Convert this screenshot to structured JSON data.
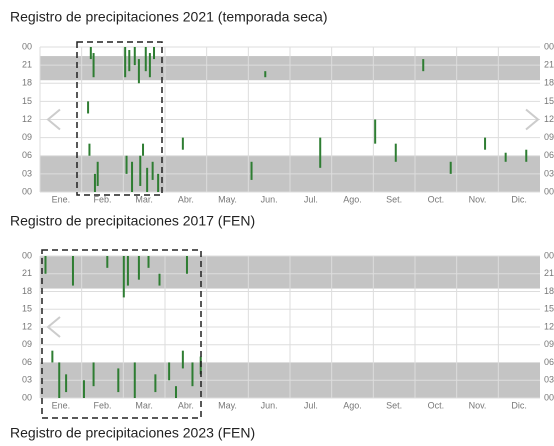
{
  "chart_data": [
    {
      "type": "timeline",
      "title": "Registro de precipitaciones 2021 (temporada seca)",
      "categories": [
        "Ene.",
        "Feb.",
        "Mar.",
        "Abr.",
        "May.",
        "Jun.",
        "Jul.",
        "Ago.",
        "Set.",
        "Oct.",
        "Nov.",
        "Dic."
      ],
      "ylim": [
        0,
        24
      ],
      "yticks": [
        {
          "value": 24,
          "label": "00"
        },
        21,
        18,
        15,
        12,
        {
          "value": 9,
          "label": "09"
        },
        {
          "value": 6,
          "label": "06"
        },
        {
          "value": 3,
          "label": "03"
        },
        {
          "value": 0,
          "label": "00"
        }
      ],
      "xlim": [
        1,
        365
      ],
      "grid": true,
      "night_color": "#c4c4c4",
      "color": "#2e7d32",
      "dark_hours": [
        [
          0,
          6
        ],
        [
          18.5,
          22.5
        ]
      ],
      "events": {
        "x": [
          38,
          40,
          36,
          37,
          41,
          43,
          63,
          66,
          70,
          73,
          78,
          81,
          84,
          64,
          68,
          74,
          79,
          83,
          87,
          76,
          105,
          155,
          165,
          205,
          245,
          260,
          280,
          300,
          325,
          340,
          355
        ],
        "start": [
          22,
          19,
          13,
          6,
          0,
          1,
          19,
          20,
          21,
          18,
          20,
          19,
          22,
          3,
          0,
          1,
          0,
          2,
          0,
          6,
          7,
          2,
          19,
          4,
          8,
          5,
          20,
          3,
          7,
          5,
          5
        ],
        "end": [
          24,
          23,
          15,
          8,
          3,
          5,
          24,
          23.5,
          24,
          22,
          24,
          23,
          24,
          6,
          5,
          6,
          4,
          5,
          3,
          8,
          9,
          5,
          20,
          9,
          12,
          8,
          22,
          5,
          9,
          6.5,
          7
        ]
      }
    },
    {
      "type": "timeline",
      "title": "Registro de precipitaciones 2017 (FEN)",
      "categories": [
        "Ene.",
        "Feb.",
        "Mar.",
        "Abr.",
        "May.",
        "Jun.",
        "Jul.",
        "Ago.",
        "Set.",
        "Oct.",
        "Nov.",
        "Dic."
      ],
      "ylim": [
        0,
        24
      ],
      "yticks": [
        {
          "value": 24,
          "label": "00"
        },
        21,
        18,
        15,
        12,
        {
          "value": 9,
          "label": "09"
        },
        {
          "value": 6,
          "label": "06"
        },
        {
          "value": 3,
          "label": "03"
        },
        {
          "value": 0,
          "label": "00"
        }
      ],
      "xlim": [
        1,
        365
      ],
      "grid": true,
      "night_color": "#c4c4c4",
      "color": "#2e7d32",
      "dark_hours": [
        [
          0,
          6
        ],
        [
          18.5,
          24
        ]
      ],
      "events": {
        "x": [
          5,
          15,
          20,
          25,
          33,
          40,
          50,
          58,
          62,
          65,
          70,
          73,
          80,
          85,
          88,
          95,
          100,
          105,
          108,
          112,
          118,
          10
        ],
        "start": [
          21,
          0,
          1,
          19,
          0,
          2,
          22,
          1,
          17,
          19,
          0,
          20,
          22,
          1,
          19,
          3,
          0,
          5,
          21,
          2,
          4,
          6
        ],
        "end": [
          24,
          6,
          4,
          24,
          3,
          6,
          24,
          5,
          24,
          24,
          6,
          24,
          24,
          4,
          21,
          6,
          2,
          8,
          24,
          6,
          7,
          8
        ]
      }
    },
    {
      "type": "title-only",
      "title": "Registro de precipitaciones 2023 (FEN)"
    }
  ]
}
